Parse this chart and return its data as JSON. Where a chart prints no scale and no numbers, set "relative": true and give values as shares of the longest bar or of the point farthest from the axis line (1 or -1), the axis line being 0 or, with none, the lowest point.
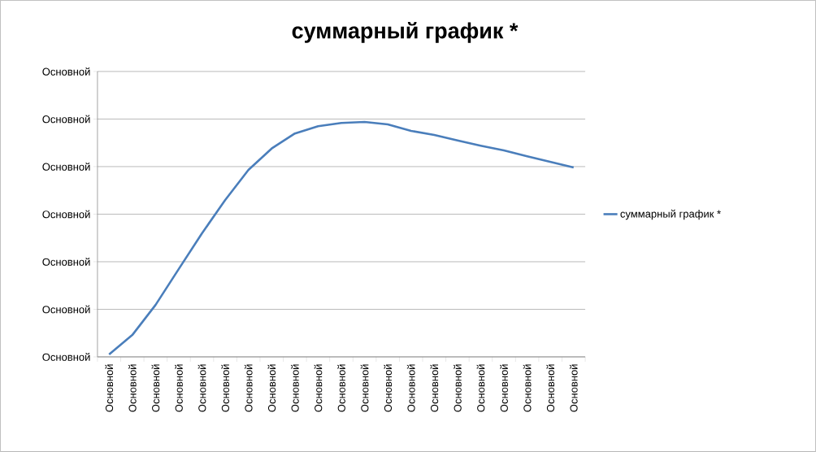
{
  "chart_data": {
    "type": "line",
    "title": "суммарный график *",
    "categories": [
      "Основной",
      "Основной",
      "Основной",
      "Основной",
      "Основной",
      "Основной",
      "Основной",
      "Основной",
      "Основной",
      "Основной",
      "Основной",
      "Основной",
      "Основной",
      "Основной",
      "Основной",
      "Основной",
      "Основной",
      "Основной",
      "Основной",
      "Основной",
      "Основной"
    ],
    "series": [
      {
        "name": "суммарный график *",
        "color": "#4a7ebb",
        "values": [
          0.01,
          0.093,
          0.221,
          0.374,
          0.526,
          0.668,
          0.796,
          0.887,
          0.951,
          0.982,
          0.996,
          1,
          0.99,
          0.962,
          0.945,
          0.921,
          0.899,
          0.879,
          0.854,
          0.83,
          0.806
        ]
      }
    ],
    "relative": true,
    "annotations": [
      "Основной",
      "Основной",
      "Основной",
      "Основной",
      "Основной",
      "Основной",
      "Основной"
    ],
    "grid": "y",
    "legend": "right"
  }
}
